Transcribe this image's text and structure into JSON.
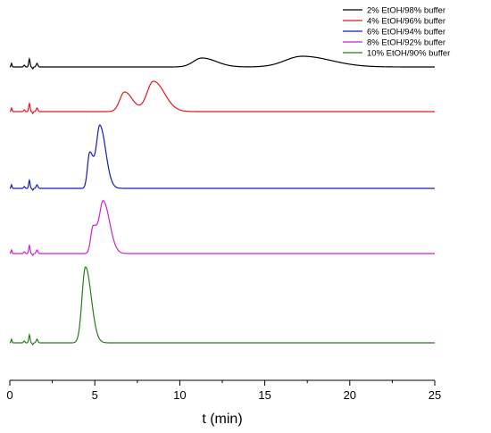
{
  "chart_data": {
    "type": "line",
    "xlabel": "t (min)",
    "ylabel": "",
    "xlim": [
      0,
      25
    ],
    "xticks": [
      "0",
      "5",
      "10",
      "15",
      "20",
      "25"
    ],
    "grid": false,
    "legend_position": "top-right",
    "series": [
      {
        "name": "2% EtOH/98% buffer",
        "color": "#000000",
        "peaks": [
          {
            "t": 11.3,
            "height": 10,
            "width": 0.5
          },
          {
            "t": 17.2,
            "height": 12,
            "width": 1.0
          }
        ]
      },
      {
        "name": "4% EtOH/96% buffer",
        "color": "#e8141c",
        "peaks": [
          {
            "t": 6.75,
            "height": 22,
            "width": 0.28
          },
          {
            "t": 8.45,
            "height": 34,
            "width": 0.38
          }
        ]
      },
      {
        "name": "6% EtOH/94% buffer",
        "color": "#1a1ab8",
        "peaks": [
          {
            "t": 4.7,
            "height": 40,
            "width": 0.13
          },
          {
            "t": 5.3,
            "height": 70,
            "width": 0.2
          }
        ]
      },
      {
        "name": "8% EtOH/92% buffer",
        "color": "#cc22cc",
        "peaks": [
          {
            "t": 4.9,
            "height": 30,
            "width": 0.14
          },
          {
            "t": 5.5,
            "height": 58,
            "width": 0.22
          }
        ]
      },
      {
        "name": "10% EtOH/90% buffer",
        "color": "#2a7a1e",
        "peaks": [
          {
            "t": 4.45,
            "height": 85,
            "width": 0.2
          }
        ]
      }
    ]
  }
}
